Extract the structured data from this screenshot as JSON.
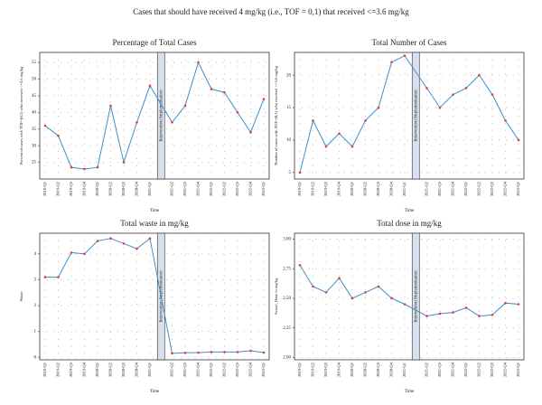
{
  "title": "Cases that should have received 4 mg/kg (i.e., TOF = 0,1) that received <=3.6 mg/kg",
  "chart_data": [
    {
      "type": "line",
      "title": "Percentage of Total Cases",
      "x_label": "Time",
      "y_label": "Percent of cases with TOF=(0,1) who received <=3.6 mg/kg",
      "annotation": "Intervention Implementation",
      "categories": [
        "2019-Q1",
        "2019-Q2",
        "2019-Q3",
        "2019-Q4",
        "2020-Q1",
        "2020-Q2",
        "2020-Q3",
        "2020-Q4",
        "2021-Q1",
        "2021-Q2",
        "2021-Q3",
        "2021-Q4",
        "2022-Q1",
        "2022-Q2",
        "2022-Q3",
        "2022-Q4",
        "2023-Q1"
      ],
      "series": [
        {
          "name": "Percentage",
          "color": "#3f8fc9",
          "values": [
            36,
            33,
            23.5,
            23,
            23.5,
            42,
            25,
            37,
            48,
            37,
            42,
            55,
            47,
            46,
            40,
            34,
            44
          ]
        }
      ],
      "marker_color": "#e0403a",
      "ylim": [
        20,
        58
      ],
      "yticks": [
        25,
        30,
        35,
        40,
        45,
        50,
        55
      ],
      "grid": true
    },
    {
      "type": "line",
      "title": "Total Number of Cases",
      "x_label": "Time",
      "y_label": "Number of cases with TOF=(0,1) who received <=3.6 mg/kg",
      "annotation": "Intervention Implementation",
      "categories": [
        "2019-Q1",
        "2019-Q2",
        "2019-Q3",
        "2019-Q4",
        "2020-Q1",
        "2020-Q2",
        "2020-Q3",
        "2020-Q4",
        "2021-Q1",
        "2021-Q2",
        "2021-Q3",
        "2021-Q4",
        "2022-Q1",
        "2022-Q2",
        "2022-Q3",
        "2022-Q4",
        "2023-Q1"
      ],
      "series": [
        {
          "name": "Number",
          "color": "#3f8fc9",
          "values": [
            5,
            13,
            9,
            11,
            9,
            13,
            15,
            22,
            23,
            18,
            15,
            17,
            18,
            20,
            17,
            13,
            10
          ]
        }
      ],
      "marker_color": "#e0403a",
      "ylim": [
        4,
        23.5
      ],
      "yticks": [
        5,
        10,
        15,
        20
      ],
      "grid": true
    },
    {
      "type": "line",
      "title": "Total waste in mg/kg",
      "x_label": "Time",
      "y_label": "Waste",
      "annotation": "Intervention Implementation",
      "categories": [
        "2019-Q1",
        "2019-Q2",
        "2019-Q3",
        "2019-Q4",
        "2020-Q1",
        "2020-Q2",
        "2020-Q3",
        "2020-Q4",
        "2021-Q1",
        "2021-Q2",
        "2021-Q3",
        "2021-Q4",
        "2022-Q1",
        "2022-Q2",
        "2022-Q3",
        "2022-Q4",
        "2023-Q1"
      ],
      "series": [
        {
          "name": "Waste",
          "color": "#3f8fc9",
          "values": [
            3.1,
            3.1,
            4.05,
            4,
            4.5,
            4.6,
            4.4,
            4.2,
            4.6,
            0.15,
            0.17,
            0.18,
            0.2,
            0.2,
            0.2,
            0.25,
            0.18
          ]
        }
      ],
      "marker_color": "#e0403a",
      "ylim": [
        -0.1,
        4.8
      ],
      "yticks": [
        0,
        1,
        2,
        3,
        4
      ],
      "grid": true
    },
    {
      "type": "line",
      "title": "Total dose in mg/kg",
      "x_label": "Time",
      "y_label": "Actual_Dose in mg/kg",
      "annotation": "Intervention Implementation",
      "categories": [
        "2019-Q1",
        "2019-Q2",
        "2019-Q3",
        "2019-Q4",
        "2020-Q1",
        "2020-Q2",
        "2020-Q3",
        "2020-Q4",
        "2021-Q1",
        "2021-Q2",
        "2021-Q3",
        "2021-Q4",
        "2022-Q1",
        "2022-Q2",
        "2022-Q3",
        "2022-Q4",
        "2023-Q1"
      ],
      "series": [
        {
          "name": "Dose",
          "color": "#3f8fc9",
          "values": [
            2.78,
            2.6,
            2.55,
            2.67,
            2.5,
            2.55,
            2.6,
            2.5,
            2.45,
            2.35,
            2.37,
            2.38,
            2.42,
            2.35,
            2.36,
            2.46,
            2.45
          ]
        }
      ],
      "marker_color": "#e0403a",
      "ylim": [
        1.98,
        3.05
      ],
      "yticks": [
        {
          "value": 2,
          "label": "2.00"
        },
        {
          "value": 2.25,
          "label": "2.25"
        },
        {
          "value": 2.5,
          "label": "2.50"
        },
        {
          "value": 2.75,
          "label": "2.75"
        },
        {
          "value": 3,
          "label": "3.00"
        }
      ],
      "grid": true
    }
  ]
}
